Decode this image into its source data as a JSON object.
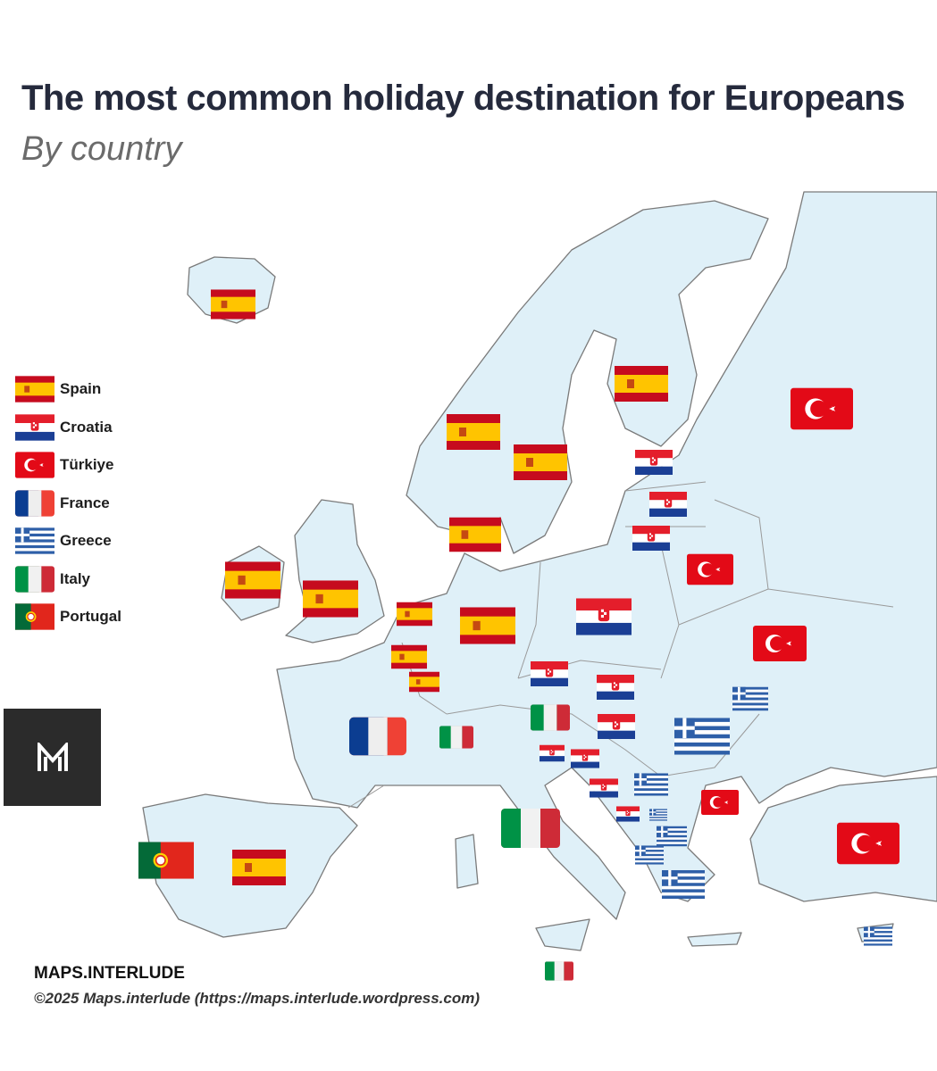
{
  "title": "The most common holiday destination for Europeans",
  "subtitle": "By country",
  "colors": {
    "land": "#dff0f8",
    "border": "#7a7a7a",
    "sea": "#ffffff",
    "title": "#252a3c"
  },
  "legend": [
    {
      "flag": "spain",
      "label": "Spain"
    },
    {
      "flag": "croatia",
      "label": "Croatia"
    },
    {
      "flag": "turkiye",
      "label": "Türkiye"
    },
    {
      "flag": "france",
      "label": "France"
    },
    {
      "flag": "greece",
      "label": "Greece"
    },
    {
      "flag": "italy",
      "label": "Italy"
    },
    {
      "flag": "portugal",
      "label": "Portugal"
    }
  ],
  "markers": [
    "spain",
    "spain",
    "spain",
    "spain",
    "spain",
    "spain",
    "spain",
    "spain",
    "spain",
    "spain",
    "spain",
    "spain",
    "croatia",
    "croatia",
    "croatia",
    "croatia",
    "croatia",
    "croatia",
    "croatia",
    "croatia",
    "croatia",
    "croatia",
    "croatia",
    "turkiye",
    "turkiye",
    "turkiye",
    "turkiye",
    "turkiye",
    "france",
    "greece",
    "greece",
    "greece",
    "greece",
    "greece",
    "greece",
    "greece",
    "greece",
    "italy",
    "italy",
    "italy",
    "italy",
    "portugal"
  ],
  "logo": "M",
  "footer": {
    "brand": "MAPS.INTERLUDE",
    "copyright": "©2025 Maps.interlude (https://maps.interlude.wordpress.com)"
  }
}
